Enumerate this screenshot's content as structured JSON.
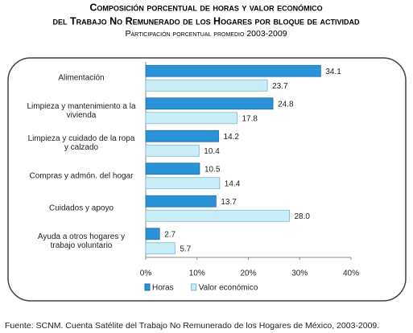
{
  "chart_data": {
    "type": "hbar",
    "title": "Composición porcentual de horas y valor económico",
    "title_line2": "del Trabajo No Remunerado de los Hogares por bloque de actividad",
    "subtitle": "Participación porcentual promedio 2003-2009",
    "categories": [
      "Alimentación",
      "Limpieza y mantenimiento a la vivienda",
      "Limpieza y cuidado de la ropa y calzado",
      "Compras y admón. del hogar",
      "Cuidados y apoyo",
      "Ayuda a otros hogares y trabajo voluntario"
    ],
    "series": [
      {
        "name": "Horas",
        "color": "#2a92d6",
        "values": [
          34.1,
          24.8,
          14.2,
          10.5,
          13.7,
          2.7
        ]
      },
      {
        "name": "Valor económico",
        "color": "#c9eef6",
        "values": [
          23.7,
          17.8,
          10.4,
          14.4,
          28.0,
          5.7
        ],
        "value_labels": [
          "23.7",
          "17.8",
          "10.4",
          "14.4",
          "28.0",
          "5.7"
        ]
      }
    ],
    "xlim": [
      0,
      40
    ],
    "xticks": [
      {
        "value": 0,
        "label": "0%"
      },
      {
        "value": 10,
        "label": "10%"
      },
      {
        "value": 20,
        "label": "20%"
      },
      {
        "value": 30,
        "label": "30%"
      },
      {
        "value": 40,
        "label": "40%"
      }
    ],
    "legend": "bottom",
    "source": "Fuente: SCNM. Cuenta Satélite del Trabajo No Remunerado de los Hogares de México, 2003-2009."
  }
}
